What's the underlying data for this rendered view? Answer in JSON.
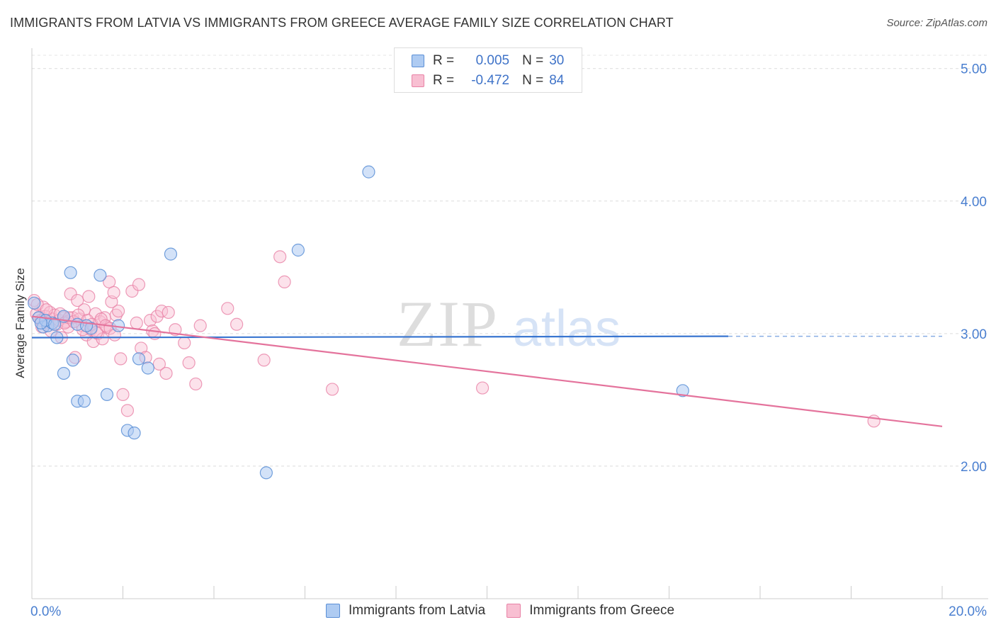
{
  "title": "IMMIGRANTS FROM LATVIA VS IMMIGRANTS FROM GREECE AVERAGE FAMILY SIZE CORRELATION CHART",
  "source": "Source: ZipAtlas.com",
  "watermark": {
    "zip": "ZIP",
    "atlas": "atlas"
  },
  "legend": {
    "r_label": "R =",
    "n_label": "N =",
    "latvia": {
      "r": "0.005",
      "n": "30"
    },
    "greece": {
      "r": "-0.472",
      "n": "84"
    }
  },
  "colors": {
    "latvia_fill": "#aecbf2",
    "latvia_stroke": "#5b8fd6",
    "latvia_line": "#3a76d0",
    "greece_fill": "#f8bfd2",
    "greece_stroke": "#e882a6",
    "greece_line": "#e4739c",
    "axis_text": "#4a7fd0"
  },
  "chart_data": {
    "type": "scatter",
    "title": "IMMIGRANTS FROM LATVIA VS IMMIGRANTS FROM GREECE AVERAGE FAMILY SIZE CORRELATION CHART",
    "xlabel": "",
    "ylabel": "Average Family Size",
    "xlim": [
      0,
      20
    ],
    "ylim": [
      1.0,
      5.1
    ],
    "x_tick_labels": [
      "0.0%",
      "20.0%"
    ],
    "y_ticks": [
      2.0,
      3.0,
      4.0,
      5.0
    ],
    "y_tick_labels": [
      "2.00",
      "3.00",
      "4.00",
      "5.00"
    ],
    "grid": "horizontal dashed",
    "legend_position": "bottom",
    "series": [
      {
        "name": "Immigrants from Latvia",
        "trend": {
          "x": [
            0,
            15.3
          ],
          "y": [
            2.97,
            2.98
          ],
          "dashed_to": [
            20,
            2.98
          ]
        },
        "points": [
          [
            0.05,
            3.23
          ],
          [
            0.15,
            3.12
          ],
          [
            0.25,
            3.05
          ],
          [
            0.35,
            3.06
          ],
          [
            0.45,
            3.08
          ],
          [
            0.55,
            2.97
          ],
          [
            0.7,
            3.13
          ],
          [
            0.7,
            2.7
          ],
          [
            0.85,
            3.46
          ],
          [
            0.9,
            2.8
          ],
          [
            1.0,
            3.07
          ],
          [
            1.0,
            2.49
          ],
          [
            1.15,
            2.49
          ],
          [
            1.3,
            3.04
          ],
          [
            1.5,
            3.44
          ],
          [
            1.65,
            2.54
          ],
          [
            1.9,
            3.06
          ],
          [
            2.1,
            2.27
          ],
          [
            2.25,
            2.25
          ],
          [
            2.35,
            2.81
          ],
          [
            2.55,
            2.74
          ],
          [
            3.05,
            3.6
          ],
          [
            5.15,
            1.95
          ],
          [
            5.85,
            3.63
          ],
          [
            7.4,
            4.22
          ],
          [
            14.3,
            2.57
          ],
          [
            0.3,
            3.1
          ],
          [
            0.5,
            3.07
          ],
          [
            1.2,
            3.06
          ],
          [
            0.2,
            3.08
          ]
        ]
      },
      {
        "name": "Immigrants from Greece",
        "trend": {
          "x": [
            0,
            20
          ],
          "y": [
            3.13,
            2.3
          ]
        },
        "points": [
          [
            0.05,
            3.25
          ],
          [
            0.1,
            3.15
          ],
          [
            0.15,
            3.12
          ],
          [
            0.2,
            3.1
          ],
          [
            0.25,
            3.2
          ],
          [
            0.3,
            3.13
          ],
          [
            0.35,
            3.08
          ],
          [
            0.4,
            3.16
          ],
          [
            0.45,
            3.11
          ],
          [
            0.5,
            3.14
          ],
          [
            0.55,
            3.07
          ],
          [
            0.6,
            3.1
          ],
          [
            0.65,
            2.97
          ],
          [
            0.7,
            3.12
          ],
          [
            0.75,
            3.09
          ],
          [
            0.8,
            3.05
          ],
          [
            0.85,
            3.3
          ],
          [
            0.9,
            3.12
          ],
          [
            0.95,
            2.82
          ],
          [
            1.0,
            3.25
          ],
          [
            1.05,
            3.11
          ],
          [
            1.1,
            3.06
          ],
          [
            1.15,
            3.18
          ],
          [
            1.2,
            2.99
          ],
          [
            1.25,
            3.28
          ],
          [
            1.3,
            3.03
          ],
          [
            1.35,
            2.94
          ],
          [
            1.4,
            3.15
          ],
          [
            1.45,
            3.0
          ],
          [
            1.5,
            3.09
          ],
          [
            1.55,
            2.96
          ],
          [
            1.6,
            3.12
          ],
          [
            1.65,
            3.05
          ],
          [
            1.7,
            3.39
          ],
          [
            1.75,
            3.24
          ],
          [
            1.8,
            3.31
          ],
          [
            1.85,
            3.14
          ],
          [
            1.9,
            3.17
          ],
          [
            1.95,
            2.81
          ],
          [
            2.0,
            2.54
          ],
          [
            2.1,
            2.42
          ],
          [
            2.2,
            3.32
          ],
          [
            2.35,
            3.37
          ],
          [
            2.4,
            2.89
          ],
          [
            2.5,
            2.82
          ],
          [
            2.6,
            3.1
          ],
          [
            2.65,
            3.02
          ],
          [
            2.7,
            3.0
          ],
          [
            2.75,
            3.13
          ],
          [
            2.8,
            2.77
          ],
          [
            2.85,
            3.17
          ],
          [
            2.95,
            2.7
          ],
          [
            3.0,
            3.16
          ],
          [
            3.15,
            3.03
          ],
          [
            3.35,
            2.93
          ],
          [
            3.45,
            2.78
          ],
          [
            3.6,
            2.62
          ],
          [
            3.7,
            3.06
          ],
          [
            4.3,
            3.19
          ],
          [
            4.5,
            3.07
          ],
          [
            5.1,
            2.8
          ],
          [
            5.45,
            3.58
          ],
          [
            5.55,
            3.39
          ],
          [
            6.6,
            2.58
          ],
          [
            9.9,
            2.59
          ],
          [
            18.5,
            2.34
          ],
          [
            0.12,
            3.22
          ],
          [
            0.22,
            3.05
          ],
          [
            0.32,
            3.18
          ],
          [
            0.42,
            3.02
          ],
          [
            0.62,
            3.15
          ],
          [
            0.72,
            3.08
          ],
          [
            0.82,
            3.12
          ],
          [
            0.92,
            3.09
          ],
          [
            1.02,
            3.14
          ],
          [
            1.12,
            3.03
          ],
          [
            1.22,
            3.1
          ],
          [
            1.32,
            3.07
          ],
          [
            1.42,
            3.01
          ],
          [
            1.52,
            3.11
          ],
          [
            1.62,
            3.06
          ],
          [
            1.72,
            3.04
          ],
          [
            1.82,
            2.99
          ],
          [
            2.3,
            3.08
          ]
        ]
      }
    ]
  },
  "bottom_legend": {
    "latvia": "Immigrants from Latvia",
    "greece": "Immigrants from Greece"
  }
}
